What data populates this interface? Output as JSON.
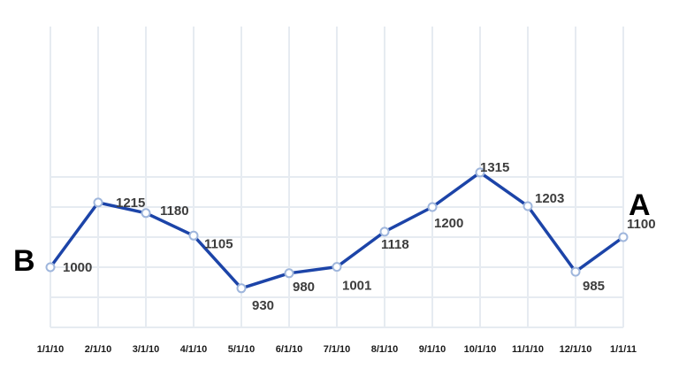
{
  "chart_data": {
    "type": "line",
    "categories": [
      "1/1/10",
      "2/1/10",
      "3/1/10",
      "4/1/10",
      "5/1/10",
      "6/1/10",
      "7/1/10",
      "8/1/10",
      "9/1/10",
      "10/1/10",
      "11/1/10",
      "12/1/10",
      "1/1/11"
    ],
    "series": [
      {
        "values": [
          1000,
          1215,
          1180,
          1105,
          930,
          980,
          1001,
          1118,
          1200,
          1315,
          1203,
          985,
          1100
        ]
      }
    ],
    "data_labels": [
      "1000",
      "1215",
      "1180",
      "1105",
      "930",
      "980",
      "1001",
      "1118",
      "1200",
      "1315",
      "1203",
      "985",
      "1100"
    ],
    "annotations": {
      "start": "B",
      "end": "A"
    },
    "ylim": [
      850,
      1350
    ],
    "grid": true,
    "colors": {
      "line": "#1c44a8",
      "marker_stroke": "#9fb6dc",
      "grid": "#e6ebf1"
    }
  }
}
